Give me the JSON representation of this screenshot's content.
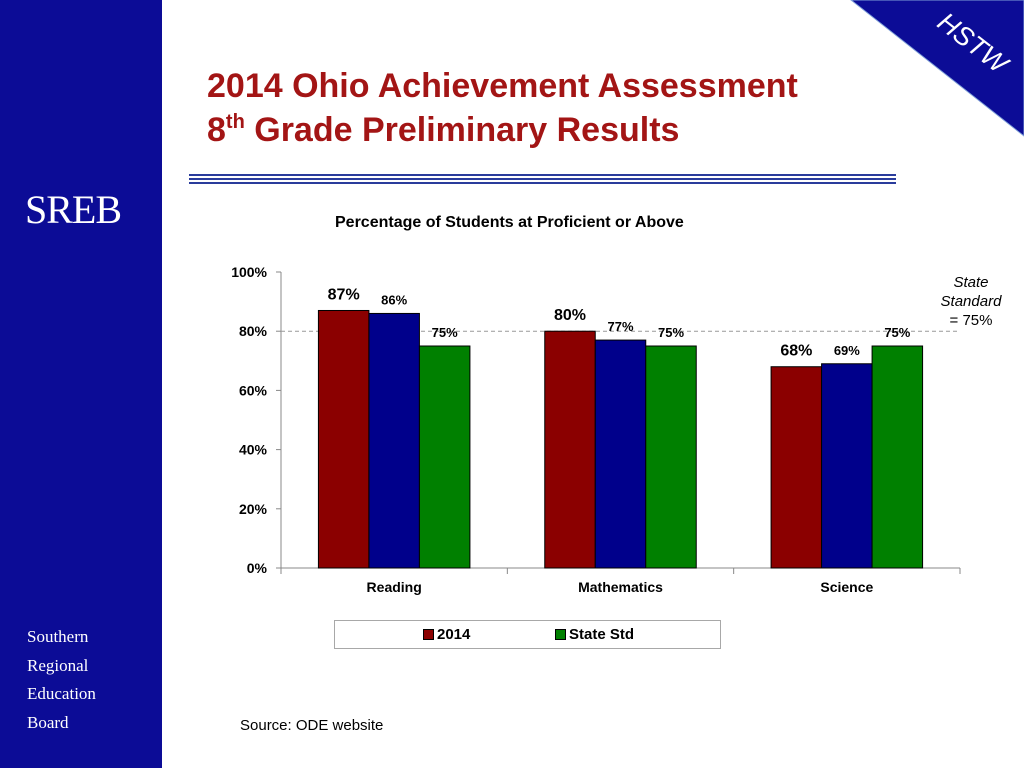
{
  "sidebar": {
    "logo": "SREB",
    "org_lines": [
      "Southern",
      "Regional",
      "Education",
      "Board"
    ]
  },
  "corner_badge": {
    "label": "HSTW",
    "background": "#0c0c96",
    "text_color": "#ffffff"
  },
  "title": {
    "line1": "2014 Ohio Achievement Assessment",
    "line2_prefix": "8",
    "line2_sup": "th",
    "line2_rest": " Grade Preliminary Results",
    "color": "#a31515"
  },
  "state_note": {
    "line1": "State",
    "line2": "Standard",
    "line3": "= 75%"
  },
  "source": "Source: ODE website",
  "chart_data": {
    "type": "bar",
    "title": "Percentage of Students at Proficient or Above",
    "categories": [
      "Reading",
      "Mathematics",
      "Science"
    ],
    "series": [
      {
        "name": "2014",
        "values": [
          87,
          80,
          68
        ],
        "labels": [
          "87%",
          "80%",
          "68%"
        ],
        "color": "#8b0000"
      },
      {
        "name": "",
        "values": [
          86,
          77,
          69
        ],
        "labels": [
          "86%",
          "77%",
          "69%"
        ],
        "color": "#00008b"
      },
      {
        "name": "State Std",
        "values": [
          75,
          75,
          75
        ],
        "labels": [
          "75%",
          "75%",
          "75%"
        ],
        "color": "#008000"
      }
    ],
    "yticks": [
      "0%",
      "20%",
      "40%",
      "60%",
      "80%",
      "100%"
    ],
    "ylim": [
      0,
      100
    ],
    "reference_line": 80,
    "legend_position": "bottom",
    "grid": false
  }
}
